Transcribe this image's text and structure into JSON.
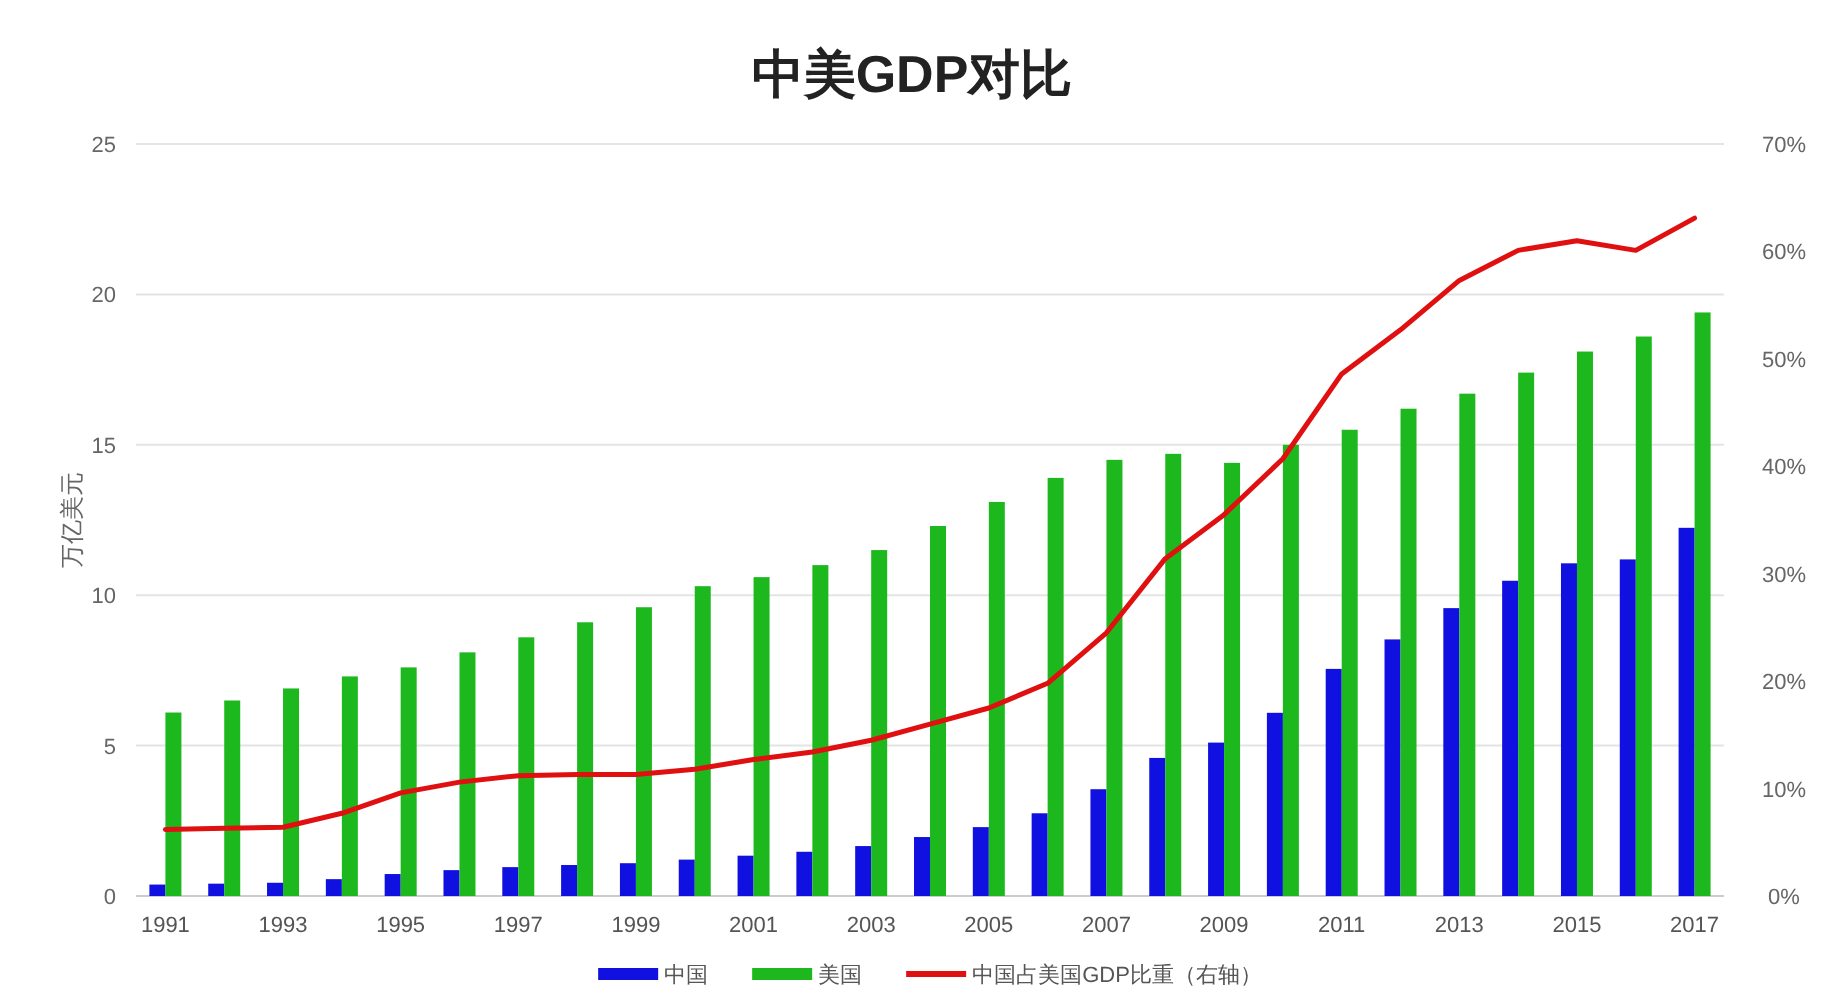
{
  "chart_data": {
    "type": "bar",
    "title": "中美GDP对比",
    "ylabel": "万亿美元",
    "categories": [
      "1991",
      null,
      "1993",
      null,
      "1995",
      null,
      "1997",
      null,
      "1999",
      null,
      "2001",
      null,
      "2003",
      null,
      "2005",
      null,
      "2007",
      null,
      "2009",
      null,
      "2011",
      null,
      "2013",
      null,
      "2015",
      null,
      "2017"
    ],
    "series": [
      {
        "name": "中国",
        "color": "#1010e0",
        "values": [
          0.38,
          0.41,
          0.44,
          0.56,
          0.73,
          0.86,
          0.96,
          1.03,
          1.09,
          1.21,
          1.34,
          1.47,
          1.66,
          1.96,
          2.29,
          2.75,
          3.55,
          4.59,
          5.1,
          6.09,
          7.55,
          8.53,
          9.57,
          10.48,
          11.06,
          11.19,
          12.24
        ]
      },
      {
        "name": "美国",
        "color": "#1db81d",
        "values": [
          6.1,
          6.5,
          6.9,
          7.3,
          7.6,
          8.1,
          8.6,
          9.1,
          9.6,
          10.3,
          10.6,
          11.0,
          11.5,
          12.3,
          13.1,
          13.9,
          14.5,
          14.7,
          14.4,
          15.0,
          15.5,
          16.2,
          16.7,
          17.4,
          18.1,
          18.6,
          19.4
        ]
      },
      {
        "name": "中国占美国GDP比重（右轴）",
        "type": "line",
        "axis": "y2",
        "color": "#e01010",
        "values": [
          6.2,
          6.3,
          6.4,
          7.7,
          9.6,
          10.6,
          11.2,
          11.3,
          11.3,
          11.8,
          12.7,
          13.4,
          14.5,
          16.0,
          17.5,
          19.8,
          24.5,
          31.4,
          35.5,
          40.7,
          48.6,
          52.7,
          57.3,
          60.1,
          61.0,
          60.1,
          63.1
        ]
      }
    ],
    "ylim": [
      0,
      25
    ],
    "yticks": [
      0,
      5,
      10,
      15,
      20,
      25
    ],
    "y2lim": [
      0,
      70
    ],
    "y2ticks": [
      {
        "value": 0,
        "label": "0%"
      },
      {
        "value": 10,
        "label": "10%"
      },
      {
        "value": 20,
        "label": "20%"
      },
      {
        "value": 30,
        "label": "30%"
      },
      {
        "value": 40,
        "label": "40%"
      },
      {
        "value": 50,
        "label": "50%"
      },
      {
        "value": 60,
        "label": "60%"
      },
      {
        "value": 70,
        "label": "70%"
      }
    ],
    "grid": "y",
    "legend": "bottom"
  }
}
